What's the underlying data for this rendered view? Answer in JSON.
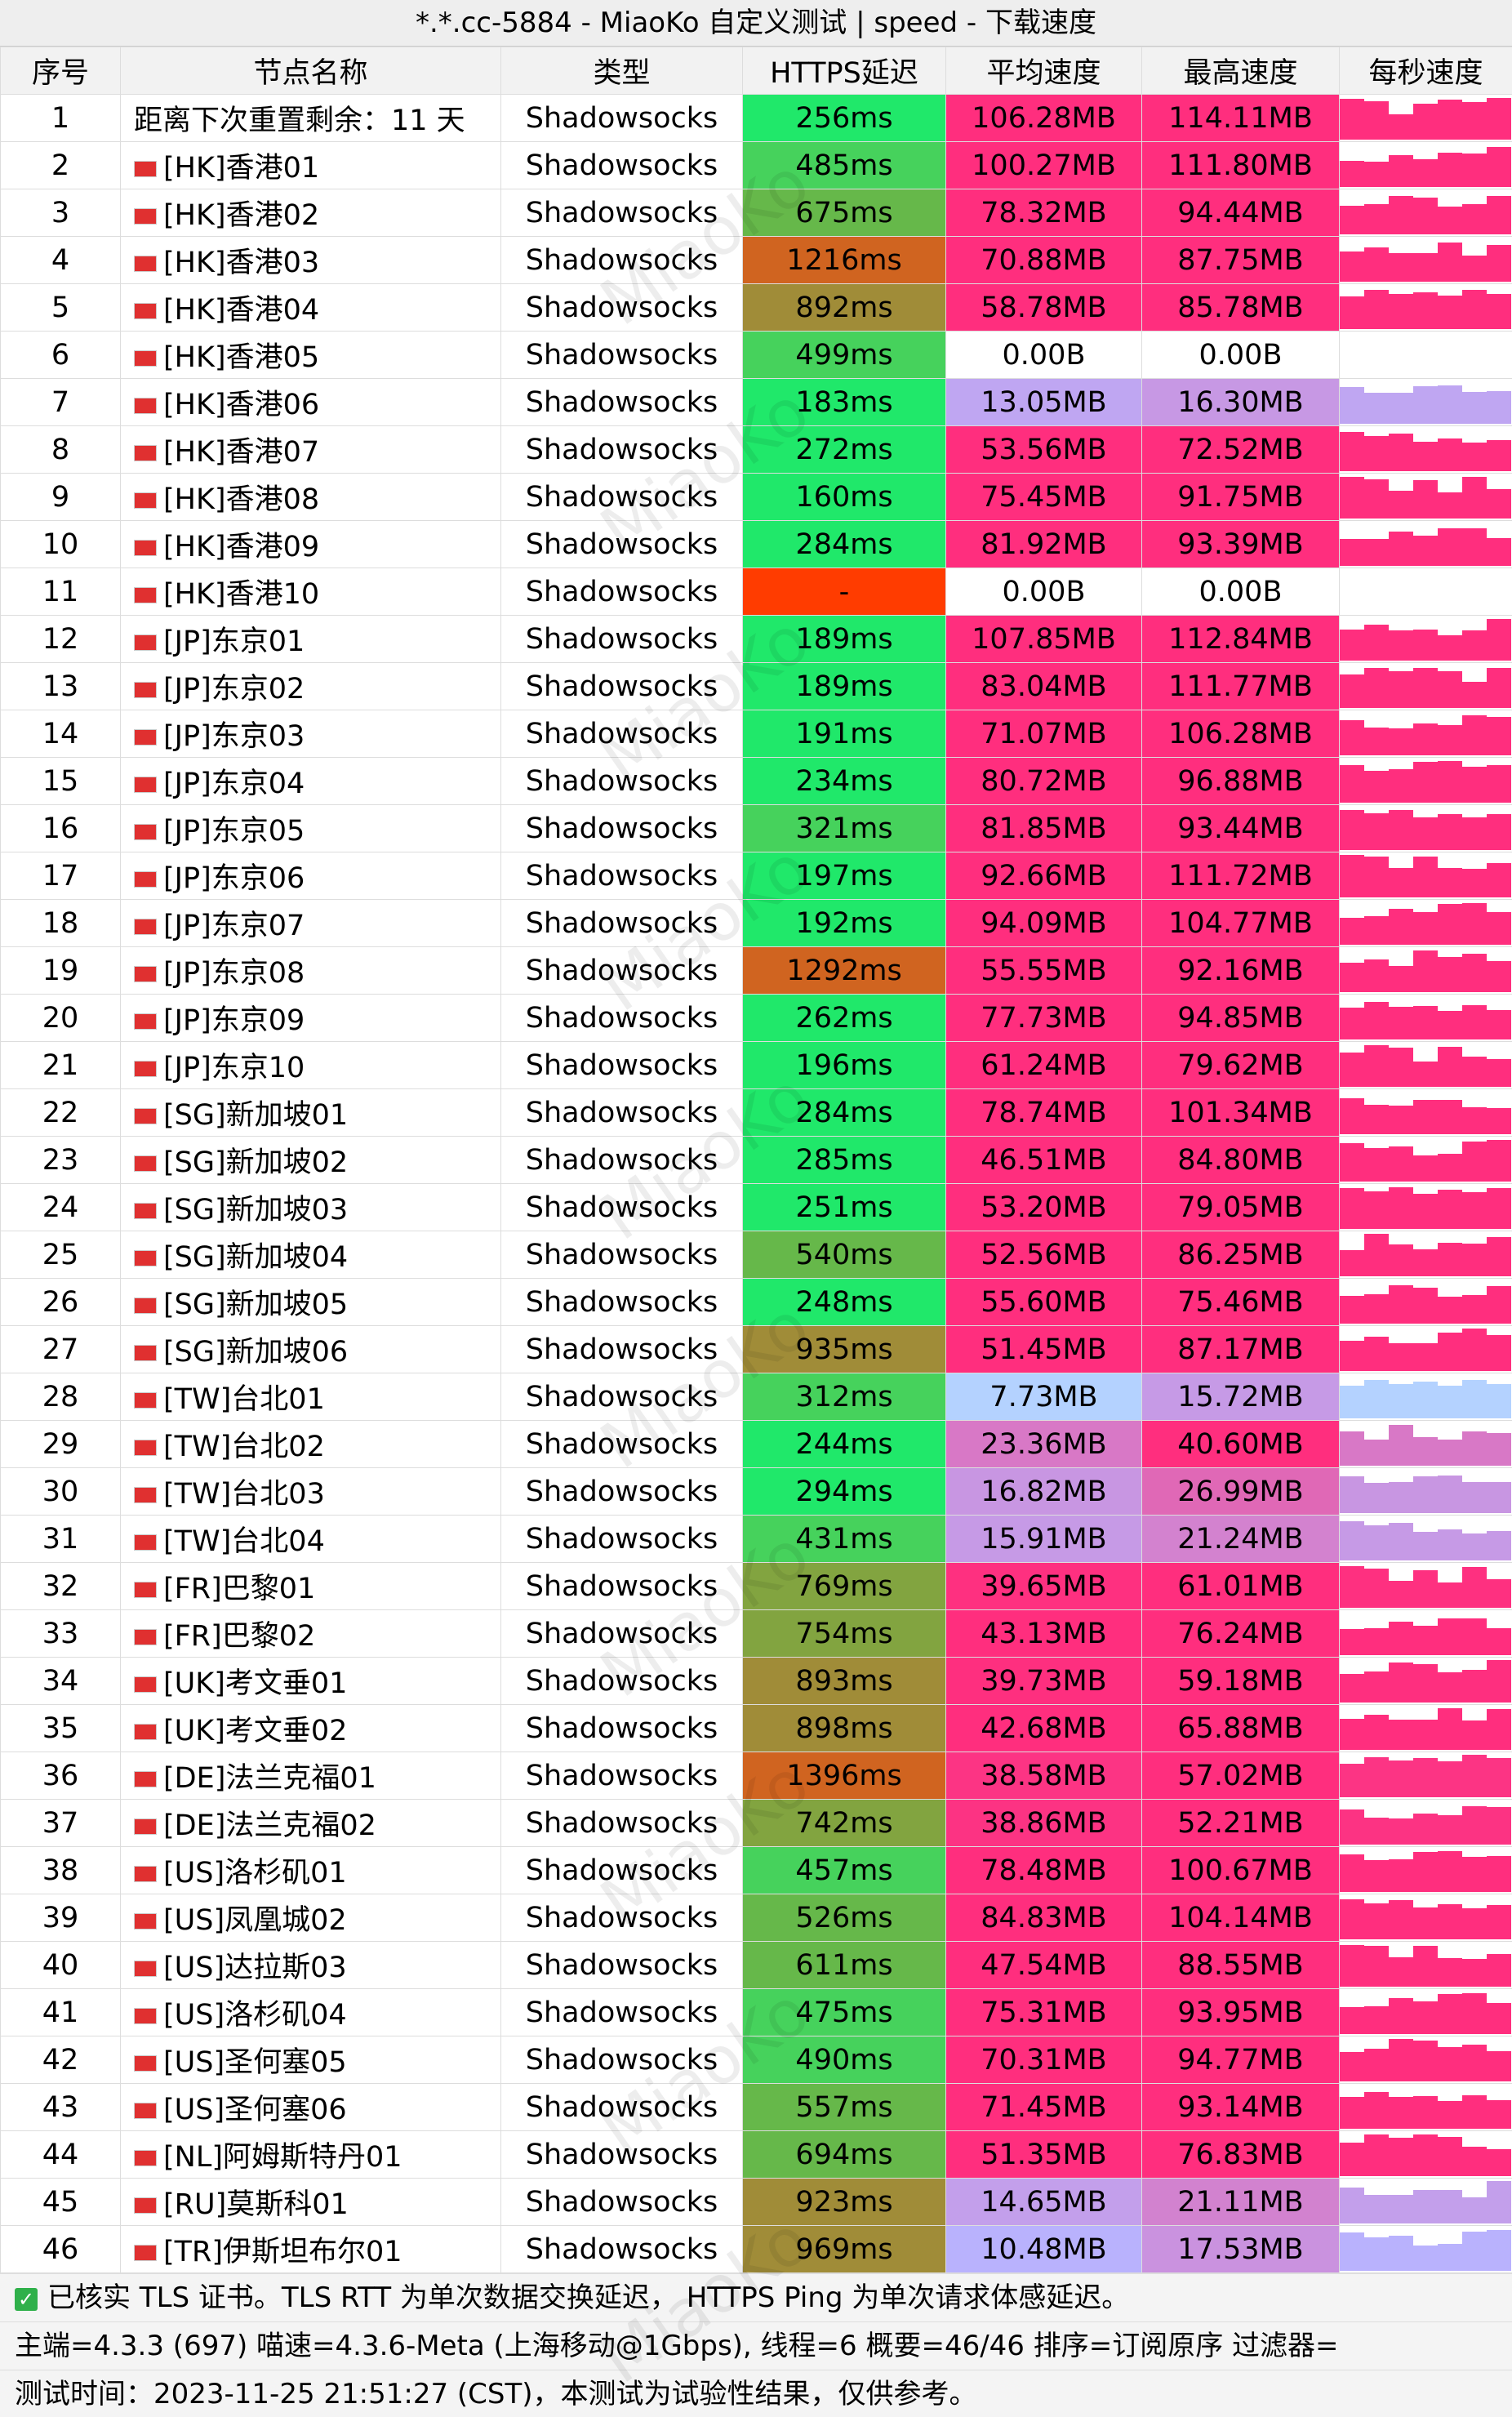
{
  "title": "*.*.cc-5884 - MiaoKo 自定义测试 | speed - 下载速度",
  "watermark": "MiaoKo",
  "table": {
    "headers": [
      "序号",
      "节点名称",
      "类型",
      "HTTPS延迟",
      "平均速度",
      "最高速度",
      "每秒速度"
    ],
    "rows": [
      [
        1,
        "距离下次重置剩余：11 天",
        "Shadowsocks",
        "256ms",
        "106.28MB",
        "114.11MB"
      ],
      [
        2,
        "[HK]香港01",
        "Shadowsocks",
        "485ms",
        "100.27MB",
        "111.80MB"
      ],
      [
        3,
        "[HK]香港02",
        "Shadowsocks",
        "675ms",
        "78.32MB",
        "94.44MB"
      ],
      [
        4,
        "[HK]香港03",
        "Shadowsocks",
        "1216ms",
        "70.88MB",
        "87.75MB"
      ],
      [
        5,
        "[HK]香港04",
        "Shadowsocks",
        "892ms",
        "58.78MB",
        "85.78MB"
      ],
      [
        6,
        "[HK]香港05",
        "Shadowsocks",
        "499ms",
        "0.00B",
        "0.00B"
      ],
      [
        7,
        "[HK]香港06",
        "Shadowsocks",
        "183ms",
        "13.05MB",
        "16.30MB"
      ],
      [
        8,
        "[HK]香港07",
        "Shadowsocks",
        "272ms",
        "53.56MB",
        "72.52MB"
      ],
      [
        9,
        "[HK]香港08",
        "Shadowsocks",
        "160ms",
        "75.45MB",
        "91.75MB"
      ],
      [
        10,
        "[HK]香港09",
        "Shadowsocks",
        "284ms",
        "81.92MB",
        "93.39MB"
      ],
      [
        11,
        "[HK]香港10",
        "Shadowsocks",
        "-",
        "0.00B",
        "0.00B"
      ],
      [
        12,
        "[JP]东京01",
        "Shadowsocks",
        "189ms",
        "107.85MB",
        "112.84MB"
      ],
      [
        13,
        "[JP]东京02",
        "Shadowsocks",
        "189ms",
        "83.04MB",
        "111.77MB"
      ],
      [
        14,
        "[JP]东京03",
        "Shadowsocks",
        "191ms",
        "71.07MB",
        "106.28MB"
      ],
      [
        15,
        "[JP]东京04",
        "Shadowsocks",
        "234ms",
        "80.72MB",
        "96.88MB"
      ],
      [
        16,
        "[JP]东京05",
        "Shadowsocks",
        "321ms",
        "81.85MB",
        "93.44MB"
      ],
      [
        17,
        "[JP]东京06",
        "Shadowsocks",
        "197ms",
        "92.66MB",
        "111.72MB"
      ],
      [
        18,
        "[JP]东京07",
        "Shadowsocks",
        "192ms",
        "94.09MB",
        "104.77MB"
      ],
      [
        19,
        "[JP]东京08",
        "Shadowsocks",
        "1292ms",
        "55.55MB",
        "92.16MB"
      ],
      [
        20,
        "[JP]东京09",
        "Shadowsocks",
        "262ms",
        "77.73MB",
        "94.85MB"
      ],
      [
        21,
        "[JP]东京10",
        "Shadowsocks",
        "196ms",
        "61.24MB",
        "79.62MB"
      ],
      [
        22,
        "[SG]新加坡01",
        "Shadowsocks",
        "284ms",
        "78.74MB",
        "101.34MB"
      ],
      [
        23,
        "[SG]新加坡02",
        "Shadowsocks",
        "285ms",
        "46.51MB",
        "84.80MB"
      ],
      [
        24,
        "[SG]新加坡03",
        "Shadowsocks",
        "251ms",
        "53.20MB",
        "79.05MB"
      ],
      [
        25,
        "[SG]新加坡04",
        "Shadowsocks",
        "540ms",
        "52.56MB",
        "86.25MB"
      ],
      [
        26,
        "[SG]新加坡05",
        "Shadowsocks",
        "248ms",
        "55.60MB",
        "75.46MB"
      ],
      [
        27,
        "[SG]新加坡06",
        "Shadowsocks",
        "935ms",
        "51.45MB",
        "87.17MB"
      ],
      [
        28,
        "[TW]台北01",
        "Shadowsocks",
        "312ms",
        "7.73MB",
        "15.72MB"
      ],
      [
        29,
        "[TW]台北02",
        "Shadowsocks",
        "244ms",
        "23.36MB",
        "40.60MB"
      ],
      [
        30,
        "[TW]台北03",
        "Shadowsocks",
        "294ms",
        "16.82MB",
        "26.99MB"
      ],
      [
        31,
        "[TW]台北04",
        "Shadowsocks",
        "431ms",
        "15.91MB",
        "21.24MB"
      ],
      [
        32,
        "[FR]巴黎01",
        "Shadowsocks",
        "769ms",
        "39.65MB",
        "61.01MB"
      ],
      [
        33,
        "[FR]巴黎02",
        "Shadowsocks",
        "754ms",
        "43.13MB",
        "76.24MB"
      ],
      [
        34,
        "[UK]考文垂01",
        "Shadowsocks",
        "893ms",
        "39.73MB",
        "59.18MB"
      ],
      [
        35,
        "[UK]考文垂02",
        "Shadowsocks",
        "898ms",
        "42.68MB",
        "65.88MB"
      ],
      [
        36,
        "[DE]法兰克福01",
        "Shadowsocks",
        "1396ms",
        "38.58MB",
        "57.02MB"
      ],
      [
        37,
        "[DE]法兰克福02",
        "Shadowsocks",
        "742ms",
        "38.86MB",
        "52.21MB"
      ],
      [
        38,
        "[US]洛杉矶01",
        "Shadowsocks",
        "457ms",
        "78.48MB",
        "100.67MB"
      ],
      [
        39,
        "[US]凤凰城02",
        "Shadowsocks",
        "526ms",
        "84.83MB",
        "104.14MB"
      ],
      [
        40,
        "[US]达拉斯03",
        "Shadowsocks",
        "611ms",
        "47.54MB",
        "88.55MB"
      ],
      [
        41,
        "[US]洛杉矶04",
        "Shadowsocks",
        "475ms",
        "75.31MB",
        "93.95MB"
      ],
      [
        42,
        "[US]圣何塞05",
        "Shadowsocks",
        "490ms",
        "70.31MB",
        "94.77MB"
      ],
      [
        43,
        "[US]圣何塞06",
        "Shadowsocks",
        "557ms",
        "71.45MB",
        "93.14MB"
      ],
      [
        44,
        "[NL]阿姆斯特丹01",
        "Shadowsocks",
        "694ms",
        "51.35MB",
        "76.83MB"
      ],
      [
        45,
        "[RU]莫斯科01",
        "Shadowsocks",
        "923ms",
        "14.65MB",
        "21.11MB"
      ],
      [
        46,
        "[TR]伊斯坦布尔01",
        "Shadowsocks",
        "969ms",
        "10.48MB",
        "17.53MB"
      ]
    ]
  },
  "footer": [
    "已核实 TLS 证书。TLS RTT 为单次数据交换延迟， HTTPS Ping 为单次请求体感延迟。",
    "主端=4.3.3 (697) 喵速=4.3.6-Meta (上海移动@1Gbps), 线程=6 概要=46/46 排序=订阅原序 过滤器=",
    "测试时间：2023-11-25 21:51:27 (CST)，本测试为试验性结果，仅供参考。"
  ]
}
